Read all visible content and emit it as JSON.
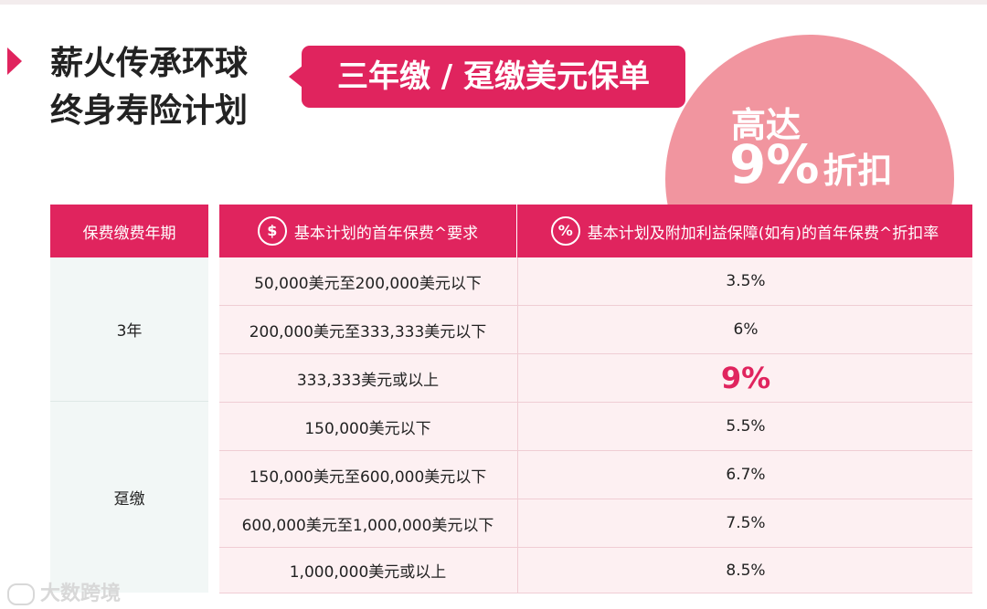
{
  "header": {
    "title_lines": [
      "薪火传承环球",
      "终身寿险计划"
    ],
    "callout": "三年缴 / 趸缴美元保单",
    "badge": {
      "line1": "高达",
      "percent": "9%",
      "suffix": "折扣"
    }
  },
  "table": {
    "columns": [
      "保费缴费年期",
      "基本计划的首年保费^要求",
      "基本计划及附加利益保障(如有)的首年保费^折扣率"
    ],
    "column_icons": [
      "dollar-icon",
      "percent-icon"
    ],
    "column_icon_glyphs": [
      "$",
      "%"
    ],
    "groups": [
      {
        "period": "3年",
        "rows": [
          {
            "requirement": "50,000美元至200,000美元以下",
            "discount": "3.5%"
          },
          {
            "requirement": "200,000美元至333,333美元以下",
            "discount": "6%"
          },
          {
            "requirement": "333,333美元或以上",
            "discount": "9%",
            "highlight": true
          }
        ]
      },
      {
        "period": "趸缴",
        "rows": [
          {
            "requirement": "150,000美元以下",
            "discount": "5.5%"
          },
          {
            "requirement": "150,000美元至600,000美元以下",
            "discount": "6.7%"
          },
          {
            "requirement": "600,000美元至1,000,000美元以下",
            "discount": "7.5%"
          },
          {
            "requirement": "1,000,000美元或以上",
            "discount": "8.5%"
          }
        ]
      }
    ]
  },
  "watermark": "大数跨境",
  "colors": {
    "accent": "#e0245e",
    "badge": "#f1959f",
    "row_bg": "#fdf0f2",
    "left_col_bg": "#f2f7f6"
  }
}
